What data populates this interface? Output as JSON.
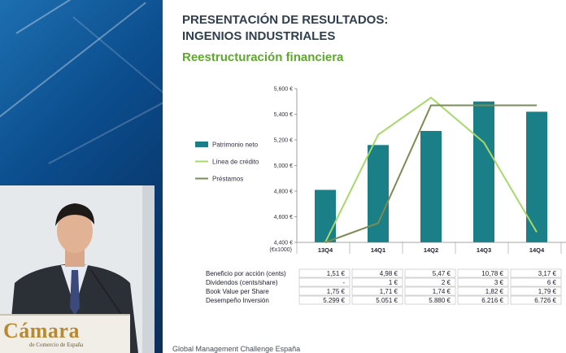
{
  "slide": {
    "title_line1": "PRESENTACIÓN DE RESULTADOS:",
    "title_line2": "INGENIOS INDUSTRIALES",
    "subtitle": "Reestructuración financiera",
    "footer": "Global Management Challenge España"
  },
  "logo": {
    "text": "Cámara",
    "sub": "de Comercio de España"
  },
  "chart_data": {
    "type": "bar",
    "categories": [
      "13Q4",
      "14Q1",
      "14Q2",
      "14Q3",
      "14Q4"
    ],
    "series": [
      {
        "name": "Patrimonio neto",
        "kind": "bar",
        "color": "#1a7f86",
        "values": [
          4810,
          5160,
          5270,
          5500,
          5420
        ]
      },
      {
        "name": "Línea de crédito",
        "kind": "line",
        "color": "#a6d96a",
        "values": [
          4400,
          5240,
          5530,
          5180,
          4480
        ]
      },
      {
        "name": "Préstamos",
        "kind": "line",
        "color": "#7a8c54",
        "values": [
          4400,
          4550,
          5470,
          5470,
          5470
        ]
      }
    ],
    "ylim": [
      4400,
      5600
    ],
    "yticks": [
      "4,400 €",
      "4,600 €",
      "4,800 €",
      "5,000 €",
      "5,200 €",
      "5,400 €",
      "5,600 €"
    ],
    "yunit": "(€x1000)",
    "grid": false,
    "legend": "left",
    "table": {
      "rows": [
        {
          "label": "Beneficio por acción (cents)",
          "values": [
            "1,51 €",
            "4,98 €",
            "5,47 €",
            "10,78 €",
            "3,17 €"
          ]
        },
        {
          "label": "Dividendos (cents/share)",
          "values": [
            "-",
            "1 €",
            "2 €",
            "3 €",
            "6 €"
          ]
        },
        {
          "label": "Book Value per Share",
          "values": [
            "1,75 €",
            "1,71 €",
            "1,74 €",
            "1,82 €",
            "1,79 €"
          ]
        },
        {
          "label": "Desempeño Inversión",
          "values": [
            "5.299 €",
            "5.051 €",
            "5.880 €",
            "6.216 €",
            "6.726 €"
          ]
        }
      ]
    }
  }
}
